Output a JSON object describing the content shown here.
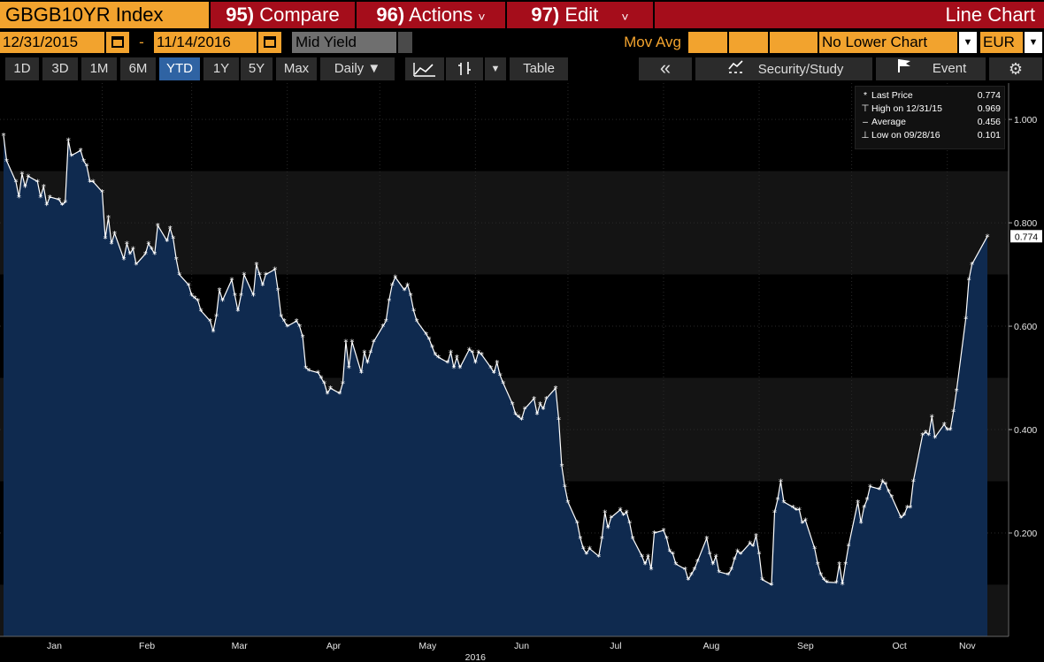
{
  "header": {
    "ticker": "GBGB10YR Index",
    "compare": {
      "num": "95)",
      "label": "Compare"
    },
    "actions": {
      "num": "96)",
      "label": "Actions"
    },
    "edit": {
      "num": "97)",
      "label": "Edit"
    },
    "chart_type": "Line Chart",
    "dropdown_glyph": "˅"
  },
  "controls": {
    "start_date": "12/31/2015",
    "end_date": "11/14/2016",
    "date_separator": "-",
    "field": "Mid Yield",
    "mov_avg_label": "Mov Avg",
    "lower_chart": "No Lower Chart",
    "currency": "EUR"
  },
  "toolbar": {
    "ranges": [
      "1D",
      "3D",
      "1M",
      "6M",
      "YTD",
      "1Y",
      "5Y",
      "Max"
    ],
    "selected_range": "YTD",
    "frequency": "Daily ▼",
    "table_label": "Table",
    "collapse_glyph": "«",
    "security_study_label": "Security/Study",
    "event_label": "Event",
    "settings_glyph": "⚙"
  },
  "chart_data": {
    "type": "area",
    "title": "",
    "xlabel": "",
    "ylabel": "",
    "x_year_label": "2016",
    "x_tick_labels": [
      "Jan",
      "Feb",
      "Mar",
      "Apr",
      "May",
      "Jun",
      "Jul",
      "Aug",
      "Sep",
      "Oct",
      "Nov"
    ],
    "x_range": [
      "2015-12-31",
      "2016-11-14"
    ],
    "ylim": [
      0.0,
      1.06
    ],
    "y_ticks": [
      0.2,
      0.4,
      0.6,
      0.8,
      1.0
    ],
    "y_tick_labels": [
      "0.200",
      "0.400",
      "0.600",
      "0.800",
      "1.000"
    ],
    "last_value_label": "0.774",
    "legend": {
      "position": "top-right",
      "entries": [
        {
          "label": "Last Price",
          "value": "0.774"
        },
        {
          "label": "High on 12/31/15",
          "value": "0.969"
        },
        {
          "label": "Average",
          "value": "0.456"
        },
        {
          "label": "Low on 09/28/16",
          "value": "0.101"
        }
      ]
    },
    "colors": {
      "line": "#ffffff",
      "fill": "#0f2a4f",
      "background": "#000000"
    },
    "series": [
      {
        "points": [
          [
            "2015-12-31",
            0.969
          ],
          [
            "2016-01-01",
            0.92
          ],
          [
            "2016-01-04",
            0.88
          ],
          [
            "2016-01-05",
            0.85
          ],
          [
            "2016-01-06",
            0.895
          ],
          [
            "2016-01-07",
            0.87
          ],
          [
            "2016-01-08",
            0.89
          ],
          [
            "2016-01-11",
            0.88
          ],
          [
            "2016-01-12",
            0.85
          ],
          [
            "2016-01-13",
            0.87
          ],
          [
            "2016-01-14",
            0.835
          ],
          [
            "2016-01-15",
            0.85
          ],
          [
            "2016-01-18",
            0.845
          ],
          [
            "2016-01-19",
            0.835
          ],
          [
            "2016-01-20",
            0.84
          ],
          [
            "2016-01-21",
            0.96
          ],
          [
            "2016-01-22",
            0.93
          ],
          [
            "2016-01-25",
            0.94
          ],
          [
            "2016-01-26",
            0.92
          ],
          [
            "2016-01-27",
            0.91
          ],
          [
            "2016-01-28",
            0.88
          ],
          [
            "2016-01-29",
            0.88
          ],
          [
            "2016-02-01",
            0.86
          ],
          [
            "2016-02-02",
            0.77
          ],
          [
            "2016-02-03",
            0.81
          ],
          [
            "2016-02-04",
            0.76
          ],
          [
            "2016-02-05",
            0.78
          ],
          [
            "2016-02-08",
            0.73
          ],
          [
            "2016-02-09",
            0.76
          ],
          [
            "2016-02-10",
            0.74
          ],
          [
            "2016-02-11",
            0.75
          ],
          [
            "2016-02-12",
            0.72
          ],
          [
            "2016-02-15",
            0.74
          ],
          [
            "2016-02-16",
            0.76
          ],
          [
            "2016-02-17",
            0.75
          ],
          [
            "2016-02-18",
            0.74
          ],
          [
            "2016-02-19",
            0.795
          ],
          [
            "2016-02-22",
            0.765
          ],
          [
            "2016-02-23",
            0.79
          ],
          [
            "2016-02-24",
            0.77
          ],
          [
            "2016-02-25",
            0.73
          ],
          [
            "2016-02-26",
            0.7
          ],
          [
            "2016-02-29",
            0.68
          ],
          [
            "2016-03-01",
            0.66
          ],
          [
            "2016-03-02",
            0.655
          ],
          [
            "2016-03-03",
            0.65
          ],
          [
            "2016-03-04",
            0.63
          ],
          [
            "2016-03-07",
            0.61
          ],
          [
            "2016-03-08",
            0.59
          ],
          [
            "2016-03-09",
            0.62
          ],
          [
            "2016-03-10",
            0.67
          ],
          [
            "2016-03-11",
            0.65
          ],
          [
            "2016-03-14",
            0.69
          ],
          [
            "2016-03-15",
            0.66
          ],
          [
            "2016-03-16",
            0.63
          ],
          [
            "2016-03-17",
            0.66
          ],
          [
            "2016-03-18",
            0.7
          ],
          [
            "2016-03-21",
            0.66
          ],
          [
            "2016-03-22",
            0.72
          ],
          [
            "2016-03-23",
            0.7
          ],
          [
            "2016-03-24",
            0.68
          ],
          [
            "2016-03-25",
            0.7
          ],
          [
            "2016-03-28",
            0.71
          ],
          [
            "2016-03-29",
            0.67
          ],
          [
            "2016-03-30",
            0.62
          ],
          [
            "2016-03-31",
            0.61
          ],
          [
            "2016-04-01",
            0.6
          ],
          [
            "2016-04-04",
            0.61
          ],
          [
            "2016-04-05",
            0.6
          ],
          [
            "2016-04-06",
            0.58
          ],
          [
            "2016-04-07",
            0.52
          ],
          [
            "2016-04-08",
            0.515
          ],
          [
            "2016-04-11",
            0.51
          ],
          [
            "2016-04-12",
            0.5
          ],
          [
            "2016-04-13",
            0.49
          ],
          [
            "2016-04-14",
            0.47
          ],
          [
            "2016-04-15",
            0.48
          ],
          [
            "2016-04-18",
            0.47
          ],
          [
            "2016-04-19",
            0.49
          ],
          [
            "2016-04-20",
            0.57
          ],
          [
            "2016-04-21",
            0.52
          ],
          [
            "2016-04-22",
            0.57
          ],
          [
            "2016-04-25",
            0.51
          ],
          [
            "2016-04-26",
            0.55
          ],
          [
            "2016-04-27",
            0.53
          ],
          [
            "2016-04-28",
            0.55
          ],
          [
            "2016-04-29",
            0.57
          ],
          [
            "2016-05-02",
            0.6
          ],
          [
            "2016-05-03",
            0.61
          ],
          [
            "2016-05-04",
            0.65
          ],
          [
            "2016-05-05",
            0.68
          ],
          [
            "2016-05-06",
            0.695
          ],
          [
            "2016-05-09",
            0.67
          ],
          [
            "2016-05-10",
            0.68
          ],
          [
            "2016-05-11",
            0.66
          ],
          [
            "2016-05-12",
            0.63
          ],
          [
            "2016-05-13",
            0.61
          ],
          [
            "2016-05-16",
            0.585
          ],
          [
            "2016-05-17",
            0.575
          ],
          [
            "2016-05-18",
            0.56
          ],
          [
            "2016-05-19",
            0.545
          ],
          [
            "2016-05-20",
            0.54
          ],
          [
            "2016-05-23",
            0.53
          ],
          [
            "2016-05-24",
            0.55
          ],
          [
            "2016-05-25",
            0.52
          ],
          [
            "2016-05-26",
            0.54
          ],
          [
            "2016-05-27",
            0.52
          ],
          [
            "2016-05-30",
            0.555
          ],
          [
            "2016-05-31",
            0.55
          ],
          [
            "2016-06-01",
            0.53
          ],
          [
            "2016-06-02",
            0.55
          ],
          [
            "2016-06-03",
            0.545
          ],
          [
            "2016-06-06",
            0.52
          ],
          [
            "2016-06-07",
            0.51
          ],
          [
            "2016-06-08",
            0.53
          ],
          [
            "2016-06-09",
            0.505
          ],
          [
            "2016-06-10",
            0.49
          ],
          [
            "2016-06-13",
            0.45
          ],
          [
            "2016-06-14",
            0.43
          ],
          [
            "2016-06-15",
            0.425
          ],
          [
            "2016-06-16",
            0.42
          ],
          [
            "2016-06-17",
            0.44
          ],
          [
            "2016-06-20",
            0.46
          ],
          [
            "2016-06-21",
            0.43
          ],
          [
            "2016-06-22",
            0.45
          ],
          [
            "2016-06-23",
            0.44
          ],
          [
            "2016-06-24",
            0.46
          ],
          [
            "2016-06-27",
            0.48
          ],
          [
            "2016-06-28",
            0.42
          ],
          [
            "2016-06-29",
            0.33
          ],
          [
            "2016-06-30",
            0.29
          ],
          [
            "2016-07-01",
            0.26
          ],
          [
            "2016-07-04",
            0.22
          ],
          [
            "2016-07-05",
            0.19
          ],
          [
            "2016-07-06",
            0.17
          ],
          [
            "2016-07-07",
            0.16
          ],
          [
            "2016-07-08",
            0.17
          ],
          [
            "2016-07-11",
            0.155
          ],
          [
            "2016-07-12",
            0.19
          ],
          [
            "2016-07-13",
            0.24
          ],
          [
            "2016-07-14",
            0.21
          ],
          [
            "2016-07-15",
            0.23
          ],
          [
            "2016-07-18",
            0.245
          ],
          [
            "2016-07-19",
            0.235
          ],
          [
            "2016-07-20",
            0.24
          ],
          [
            "2016-07-21",
            0.22
          ],
          [
            "2016-07-22",
            0.19
          ],
          [
            "2016-07-25",
            0.155
          ],
          [
            "2016-07-26",
            0.14
          ],
          [
            "2016-07-27",
            0.155
          ],
          [
            "2016-07-28",
            0.13
          ],
          [
            "2016-07-29",
            0.2
          ],
          [
            "2016-08-01",
            0.205
          ],
          [
            "2016-08-02",
            0.19
          ],
          [
            "2016-08-03",
            0.165
          ],
          [
            "2016-08-04",
            0.16
          ],
          [
            "2016-08-05",
            0.14
          ],
          [
            "2016-08-08",
            0.13
          ],
          [
            "2016-08-09",
            0.11
          ],
          [
            "2016-08-10",
            0.12
          ],
          [
            "2016-08-11",
            0.13
          ],
          [
            "2016-08-12",
            0.145
          ],
          [
            "2016-08-15",
            0.19
          ],
          [
            "2016-08-16",
            0.16
          ],
          [
            "2016-08-17",
            0.14
          ],
          [
            "2016-08-18",
            0.155
          ],
          [
            "2016-08-19",
            0.125
          ],
          [
            "2016-08-22",
            0.12
          ],
          [
            "2016-08-23",
            0.13
          ],
          [
            "2016-08-24",
            0.15
          ],
          [
            "2016-08-25",
            0.165
          ],
          [
            "2016-08-26",
            0.16
          ],
          [
            "2016-08-29",
            0.18
          ],
          [
            "2016-08-30",
            0.175
          ],
          [
            "2016-08-31",
            0.195
          ],
          [
            "2016-09-01",
            0.16
          ],
          [
            "2016-09-02",
            0.11
          ],
          [
            "2016-09-05",
            0.1
          ],
          [
            "2016-09-06",
            0.24
          ],
          [
            "2016-09-07",
            0.265
          ],
          [
            "2016-09-08",
            0.3
          ],
          [
            "2016-09-09",
            0.26
          ],
          [
            "2016-09-12",
            0.25
          ],
          [
            "2016-09-13",
            0.245
          ],
          [
            "2016-09-14",
            0.245
          ],
          [
            "2016-09-15",
            0.22
          ],
          [
            "2016-09-16",
            0.225
          ],
          [
            "2016-09-19",
            0.17
          ],
          [
            "2016-09-20",
            0.14
          ],
          [
            "2016-09-21",
            0.12
          ],
          [
            "2016-09-22",
            0.11
          ],
          [
            "2016-09-23",
            0.105
          ],
          [
            "2016-09-26",
            0.104
          ],
          [
            "2016-09-27",
            0.14
          ],
          [
            "2016-09-28",
            0.101
          ],
          [
            "2016-09-29",
            0.14
          ],
          [
            "2016-09-30",
            0.175
          ],
          [
            "2016-10-03",
            0.26
          ],
          [
            "2016-10-04",
            0.22
          ],
          [
            "2016-10-05",
            0.25
          ],
          [
            "2016-10-06",
            0.265
          ],
          [
            "2016-10-07",
            0.29
          ],
          [
            "2016-10-10",
            0.285
          ],
          [
            "2016-10-11",
            0.3
          ],
          [
            "2016-10-12",
            0.295
          ],
          [
            "2016-10-13",
            0.28
          ],
          [
            "2016-10-14",
            0.27
          ],
          [
            "2016-10-17",
            0.23
          ],
          [
            "2016-10-18",
            0.235
          ],
          [
            "2016-10-19",
            0.25
          ],
          [
            "2016-10-20",
            0.25
          ],
          [
            "2016-10-21",
            0.3
          ],
          [
            "2016-10-24",
            0.39
          ],
          [
            "2016-10-25",
            0.395
          ],
          [
            "2016-10-26",
            0.39
          ],
          [
            "2016-10-27",
            0.425
          ],
          [
            "2016-10-28",
            0.385
          ],
          [
            "2016-10-31",
            0.41
          ],
          [
            "2016-11-01",
            0.4
          ],
          [
            "2016-11-02",
            0.4
          ],
          [
            "2016-11-03",
            0.435
          ],
          [
            "2016-11-04",
            0.475
          ],
          [
            "2016-11-07",
            0.615
          ],
          [
            "2016-11-08",
            0.69
          ],
          [
            "2016-11-09",
            0.72
          ],
          [
            "2016-11-14",
            0.774
          ]
        ]
      }
    ]
  }
}
